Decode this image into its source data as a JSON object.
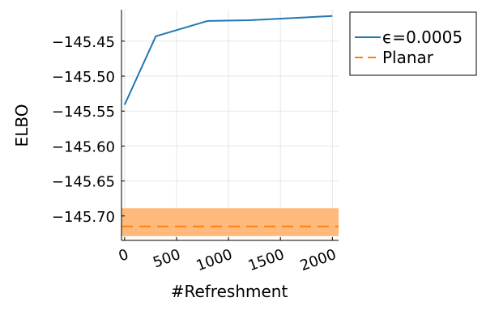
{
  "chart_data": {
    "type": "line",
    "title": "",
    "xlabel": "#Refreshment",
    "ylabel": "ELBO",
    "xlim": [
      -30,
      2060
    ],
    "ylim": [
      -145.735,
      -145.405
    ],
    "x_ticks": [
      0,
      500,
      1000,
      1500,
      2000
    ],
    "x_tick_labels": [
      "0",
      "500",
      "1000",
      "1500",
      "2000"
    ],
    "y_ticks": [
      -145.45,
      -145.5,
      -145.55,
      -145.6,
      -145.65,
      -145.7
    ],
    "y_tick_labels": [
      "−145.45",
      "−145.50",
      "−145.55",
      "−145.60",
      "−145.65",
      "−145.70"
    ],
    "grid": true,
    "legend_position": "outside-top-right",
    "series": [
      {
        "name": "ϵ=0.0005",
        "style": "solid",
        "color": "#1f77b4",
        "x": [
          0,
          300,
          800,
          1200,
          2000
        ],
        "y": [
          -145.541,
          -145.443,
          -145.421,
          -145.42,
          -145.414
        ]
      },
      {
        "name": "Planar",
        "style": "dashed",
        "color": "#ff7f0e",
        "x": [
          -30,
          2060
        ],
        "y": [
          -145.715,
          -145.715
        ],
        "band": {
          "lower": -145.729,
          "upper": -145.689,
          "color": "#ffb97a"
        }
      }
    ]
  }
}
